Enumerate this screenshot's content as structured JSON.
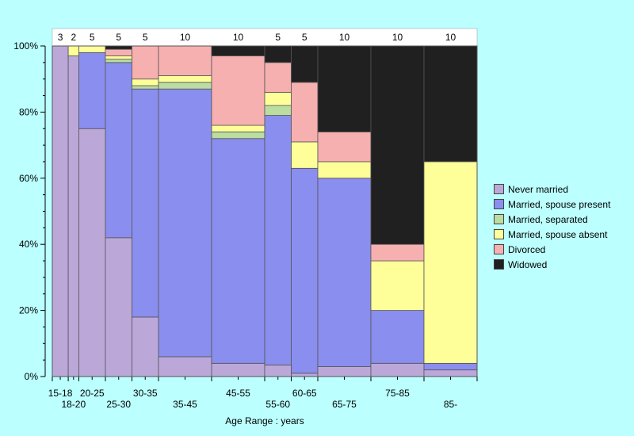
{
  "chart_data": {
    "type": "bar",
    "subtype": "mosaic-stacked-100",
    "xlabel": "Age Range : years",
    "y_ticks": [
      "0%",
      "20%",
      "40%",
      "60%",
      "80%",
      "100%"
    ],
    "ylim": [
      0,
      100
    ],
    "categories": [
      "15-18",
      "18-20",
      "20-25",
      "25-30",
      "30-35",
      "35-45",
      "45-55",
      "55-60",
      "60-65",
      "65-75",
      "75-85",
      "85-"
    ],
    "widths": [
      3,
      2,
      5,
      5,
      5,
      10,
      10,
      5,
      5,
      10,
      10,
      10
    ],
    "width_labels": [
      "3",
      "2",
      "5",
      "5",
      "5",
      "10",
      "10",
      "5",
      "5",
      "10",
      "10",
      "10"
    ],
    "series": [
      {
        "name": "Never married",
        "color": "#bba8d9",
        "values": [
          100,
          97,
          75,
          42,
          18,
          6,
          4,
          3.5,
          1,
          3,
          4,
          2
        ]
      },
      {
        "name": "Married, spouse present",
        "color": "#8a8eee",
        "values": [
          0,
          0,
          23,
          53,
          69,
          81,
          68,
          75.5,
          62,
          57,
          16,
          2
        ]
      },
      {
        "name": "Married, separated",
        "color": "#bbdda0",
        "values": [
          0,
          0,
          0,
          1,
          1,
          2,
          2,
          3,
          0,
          0,
          0,
          0
        ]
      },
      {
        "name": "Married, spouse absent",
        "color": "#ffff99",
        "values": [
          0,
          3,
          2,
          1,
          2,
          2,
          2,
          4,
          8,
          5,
          15,
          61
        ]
      },
      {
        "name": "Divorced",
        "color": "#f7b0b0",
        "values": [
          0,
          0,
          0,
          2,
          10,
          9,
          21,
          9,
          18,
          9,
          5,
          0
        ]
      },
      {
        "name": "Widowed",
        "color": "#202020",
        "values": [
          0,
          0,
          0,
          1,
          0,
          0,
          3,
          5,
          11,
          26,
          60,
          35
        ]
      }
    ]
  }
}
